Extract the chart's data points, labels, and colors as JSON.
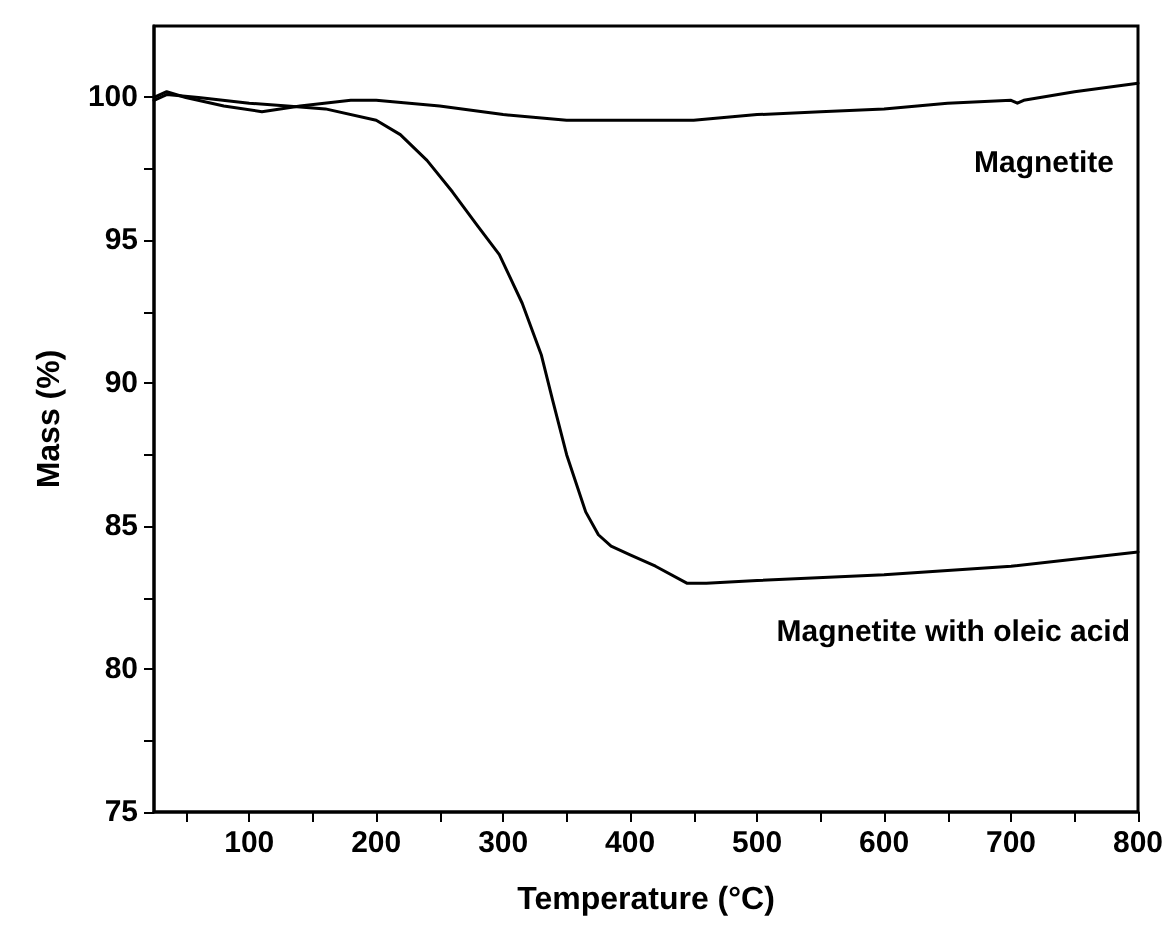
{
  "chart_data": {
    "type": "line",
    "xlabel": "Temperature (°C)",
    "ylabel": "Mass (%)",
    "xlim": [
      25,
      800
    ],
    "xticks": [
      {
        "value": 50,
        "label": null
      },
      100,
      {
        "value": 150,
        "label": null
      },
      200,
      {
        "value": 250,
        "label": null
      },
      300,
      {
        "value": 350,
        "label": null
      },
      400,
      {
        "value": 450,
        "label": null
      },
      500,
      {
        "value": 550,
        "label": null
      },
      600,
      {
        "value": 650,
        "label": null
      },
      700,
      {
        "value": 750,
        "label": null
      },
      800
    ],
    "ylim": [
      75,
      102.5
    ],
    "yticks": [
      75,
      {
        "value": 77.5,
        "label": null
      },
      80,
      {
        "value": 82.5,
        "label": null
      },
      85,
      {
        "value": 87.5,
        "label": null
      },
      90,
      {
        "value": 92.5,
        "label": null
      },
      95,
      {
        "value": 97.5,
        "label": null
      },
      100
    ],
    "grid": false,
    "marker": "none",
    "line_style": "solid",
    "series": [
      {
        "name": "Magnetite",
        "color": "#000000",
        "x": [
          25,
          35,
          50,
          80,
          110,
          140,
          180,
          200,
          250,
          300,
          350,
          400,
          450,
          500,
          550,
          600,
          650,
          700,
          705,
          710,
          750,
          800
        ],
        "values": [
          100.0,
          100.2,
          100.0,
          99.7,
          99.5,
          99.7,
          99.9,
          99.9,
          99.7,
          99.4,
          99.2,
          99.2,
          99.2,
          99.4,
          99.5,
          99.6,
          99.8,
          99.9,
          99.8,
          99.9,
          100.2,
          100.5
        ]
      },
      {
        "name": "Magnetite with oleic acid",
        "color": "#000000",
        "x": [
          25,
          35,
          60,
          100,
          130,
          160,
          200,
          219,
          240,
          260,
          280,
          297,
          315,
          330,
          339,
          350,
          365,
          375,
          385,
          400,
          420,
          445,
          460,
          500,
          600,
          700,
          800
        ],
        "values": [
          99.9,
          100.1,
          100.0,
          99.8,
          99.7,
          99.6,
          99.2,
          98.7,
          97.8,
          96.7,
          95.5,
          94.5,
          92.8,
          91.0,
          89.4,
          87.5,
          85.5,
          84.7,
          84.3,
          84.0,
          83.6,
          83.0,
          83.0,
          83.1,
          83.3,
          83.6,
          84.1
        ]
      }
    ]
  }
}
